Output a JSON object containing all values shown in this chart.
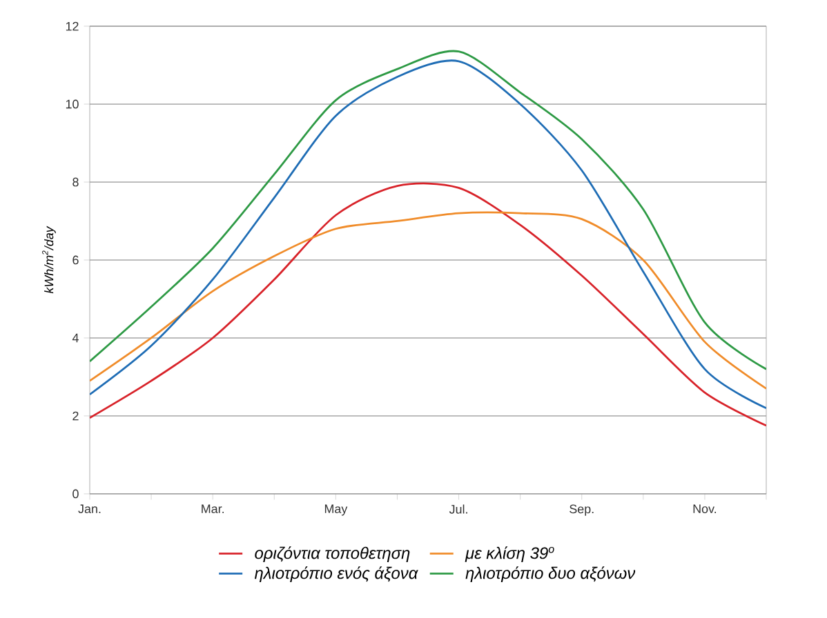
{
  "chart_data": {
    "type": "line",
    "ylabel": "kWh/m$^{2}$/day",
    "categories": [
      "Jan.",
      null,
      "Mar.",
      null,
      "May",
      null,
      "Jul.",
      null,
      "Sep.",
      null,
      "Nov.",
      null
    ],
    "series": [
      {
        "name": "οριζόντια τοποθετηση",
        "color": "#d8232a",
        "values": [
          1.95,
          2.9,
          4.0,
          5.5,
          7.15,
          7.9,
          7.85,
          6.9,
          5.6,
          4.1,
          2.6,
          1.75
        ]
      },
      {
        "name": "με κλίση 39$^{o}$",
        "color": "#f08c2a",
        "values": [
          2.9,
          4.0,
          5.2,
          6.1,
          6.8,
          7.0,
          7.2,
          7.2,
          7.05,
          6.0,
          3.9,
          2.7
        ]
      },
      {
        "name": "ηλιοτρόπιο ενός άξονα",
        "color": "#1f6db5",
        "values": [
          2.55,
          3.8,
          5.5,
          7.6,
          9.7,
          10.7,
          11.1,
          10.0,
          8.3,
          5.7,
          3.2,
          2.2
        ]
      },
      {
        "name": "ηλιοτρόπιο δυο αξόνων",
        "color": "#2e9a45",
        "values": [
          3.4,
          4.8,
          6.3,
          8.2,
          10.1,
          10.9,
          11.35,
          10.3,
          9.1,
          7.3,
          4.4,
          3.2
        ]
      }
    ],
    "ylim": [
      0,
      12
    ],
    "yticks": [
      0,
      2,
      4,
      6,
      8,
      10,
      12
    ],
    "grid": "y",
    "legend": "bottom",
    "marker": "none",
    "line_style": "solid"
  }
}
